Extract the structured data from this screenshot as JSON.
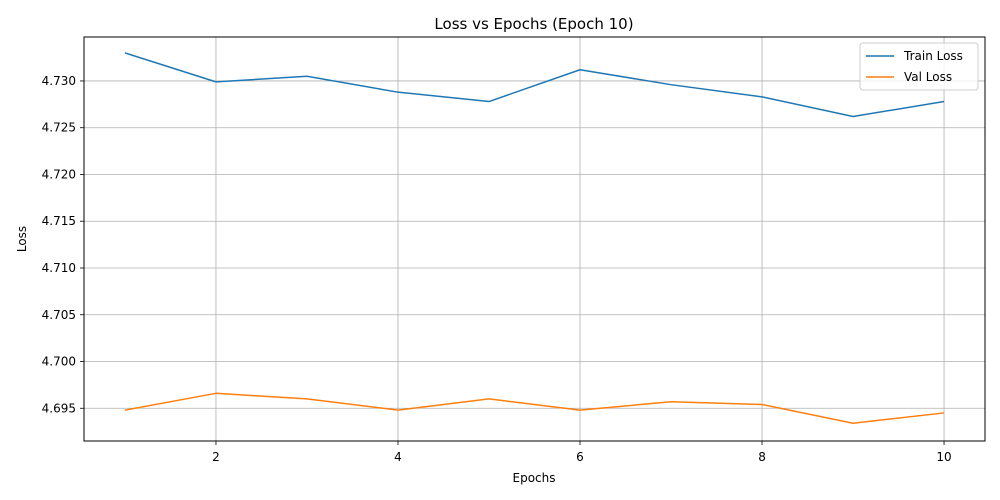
{
  "chart_data": {
    "type": "line",
    "title": "Loss vs Epochs (Epoch 10)",
    "xlabel": "Epochs",
    "ylabel": "Loss",
    "x": [
      1,
      2,
      3,
      4,
      5,
      6,
      7,
      8,
      9,
      10
    ],
    "xticks": [
      2,
      4,
      6,
      8,
      10
    ],
    "yticks": [
      4.695,
      4.7,
      4.705,
      4.71,
      4.715,
      4.72,
      4.725,
      4.73
    ],
    "xlim": [
      0.55,
      10.45
    ],
    "ylim": [
      4.6915,
      4.7347
    ],
    "grid": true,
    "legend_position": "top-right",
    "series": [
      {
        "name": "Train Loss",
        "color": "#1f77b4",
        "values": [
          4.733,
          4.7299,
          4.7305,
          4.7288,
          4.7278,
          4.7312,
          4.7296,
          4.7283,
          4.7262,
          4.7278
        ]
      },
      {
        "name": "Val Loss",
        "color": "#ff7f0e",
        "values": [
          4.6948,
          4.6966,
          4.696,
          4.6948,
          4.696,
          4.6948,
          4.6957,
          4.6954,
          4.6934,
          4.6945
        ]
      }
    ]
  }
}
